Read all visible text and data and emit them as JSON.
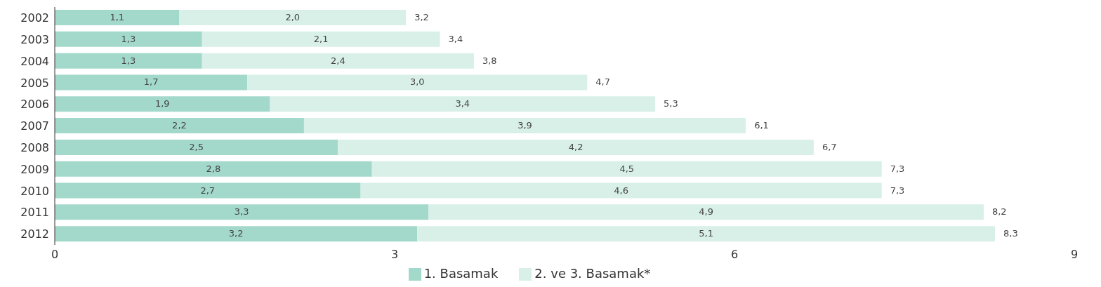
{
  "chart_data": {
    "type": "bar",
    "orientation": "horizontal",
    "stacked": true,
    "categories": [
      "2002",
      "2003",
      "2004",
      "2005",
      "2006",
      "2007",
      "2008",
      "2009",
      "2010",
      "2011",
      "2012"
    ],
    "series": [
      {
        "name": "1. Basamak",
        "color": "#a3d9cb",
        "values": [
          1.1,
          1.3,
          1.3,
          1.7,
          1.9,
          2.2,
          2.5,
          2.8,
          2.7,
          3.3,
          3.2
        ],
        "value_labels": [
          "1,1",
          "1,3",
          "1,3",
          "1,7",
          "1,9",
          "2,2",
          "2,5",
          "2,8",
          "2,7",
          "3,3",
          "3,2"
        ]
      },
      {
        "name": "2. ve 3. Basamak*",
        "color": "#d9f0e9",
        "values": [
          2.0,
          2.1,
          2.4,
          3.0,
          3.4,
          3.9,
          4.2,
          4.5,
          4.6,
          4.9,
          5.1
        ],
        "value_labels": [
          "2,0",
          "2,1",
          "2,4",
          "3,0",
          "3,4",
          "3,9",
          "4,2",
          "4,5",
          "4,6",
          "4,9",
          "5,1"
        ]
      }
    ],
    "totals": [
      "3,2",
      "3,4",
      "3,8",
      "4,7",
      "5,3",
      "6,1",
      "6,7",
      "7,3",
      "7,3",
      "8,2",
      "8,3"
    ],
    "xlim": [
      0,
      9
    ],
    "xticks": [
      0,
      3,
      6,
      9
    ],
    "grid": false,
    "legend": "bottom"
  }
}
